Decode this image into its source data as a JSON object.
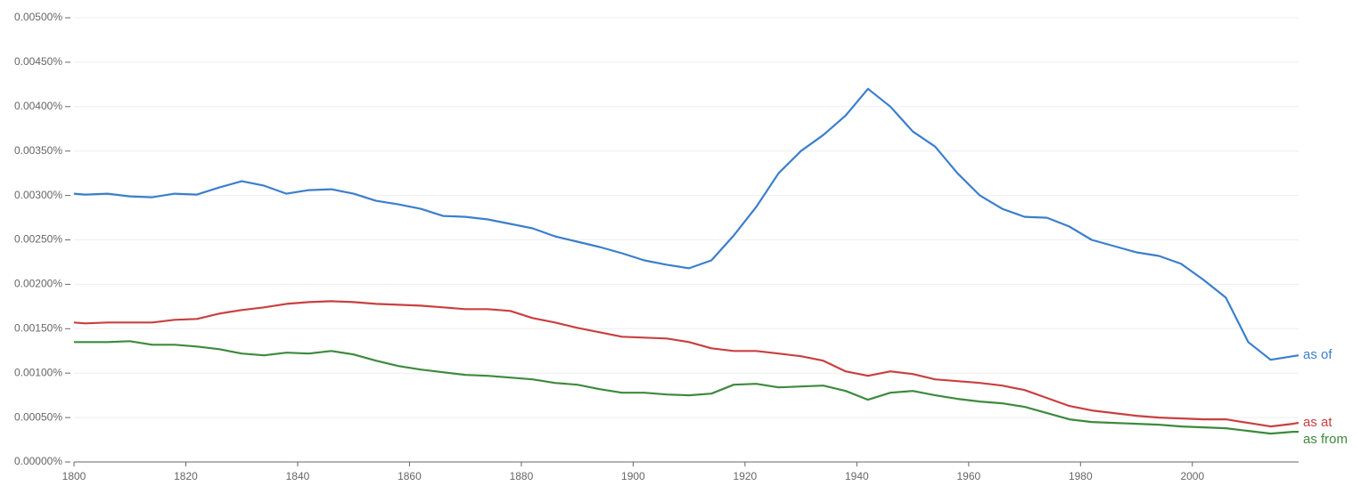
{
  "chart_data": {
    "type": "line",
    "x": [
      1800,
      1802,
      1806,
      1810,
      1814,
      1818,
      1822,
      1826,
      1830,
      1834,
      1838,
      1842,
      1846,
      1850,
      1854,
      1858,
      1862,
      1866,
      1870,
      1874,
      1878,
      1882,
      1886,
      1890,
      1894,
      1898,
      1902,
      1906,
      1910,
      1914,
      1918,
      1922,
      1926,
      1930,
      1934,
      1938,
      1942,
      1946,
      1950,
      1954,
      1958,
      1962,
      1966,
      1970,
      1974,
      1978,
      1982,
      1986,
      1990,
      1994,
      1998,
      2002,
      2006,
      2010,
      2014,
      2018,
      2019
    ],
    "series": [
      {
        "name": "as of",
        "color": "#3b7fcb",
        "values": [
          0.00302,
          0.00301,
          0.00302,
          0.00299,
          0.00298,
          0.00302,
          0.00301,
          0.00309,
          0.00316,
          0.00311,
          0.00302,
          0.00306,
          0.00307,
          0.00302,
          0.00294,
          0.0029,
          0.00285,
          0.00277,
          0.00276,
          0.00273,
          0.00268,
          0.00263,
          0.00254,
          0.00248,
          0.00242,
          0.00235,
          0.00227,
          0.00222,
          0.00218,
          0.00227,
          0.00255,
          0.00287,
          0.00325,
          0.0035,
          0.00368,
          0.0039,
          0.0042,
          0.004,
          0.00372,
          0.00355,
          0.00325,
          0.003,
          0.00285,
          0.00276,
          0.00275,
          0.00265,
          0.0025,
          0.00243,
          0.00236,
          0.00232,
          0.00223,
          0.00205,
          0.00185,
          0.00135,
          0.00115,
          0.00119,
          0.0012
        ]
      },
      {
        "name": "as at",
        "color": "#c94040",
        "values": [
          0.00157,
          0.00156,
          0.00157,
          0.00157,
          0.00157,
          0.0016,
          0.00161,
          0.00167,
          0.00171,
          0.00174,
          0.00178,
          0.0018,
          0.00181,
          0.0018,
          0.00178,
          0.00177,
          0.00176,
          0.00174,
          0.00172,
          0.00172,
          0.0017,
          0.00162,
          0.00157,
          0.00151,
          0.00146,
          0.00141,
          0.0014,
          0.00139,
          0.00135,
          0.00128,
          0.00125,
          0.00125,
          0.00122,
          0.00119,
          0.00114,
          0.00102,
          0.00097,
          0.00102,
          0.00099,
          0.00093,
          0.00091,
          0.00089,
          0.00086,
          0.00081,
          0.00072,
          0.00063,
          0.00058,
          0.00055,
          0.00052,
          0.0005,
          0.00049,
          0.00048,
          0.00048,
          0.00044,
          0.0004,
          0.00043,
          0.00044
        ]
      },
      {
        "name": "as from",
        "color": "#3d8a3d",
        "values": [
          0.00135,
          0.00135,
          0.00135,
          0.00136,
          0.00132,
          0.00132,
          0.0013,
          0.00127,
          0.00122,
          0.0012,
          0.00123,
          0.00122,
          0.00125,
          0.00121,
          0.00114,
          0.00108,
          0.00104,
          0.00101,
          0.00098,
          0.00097,
          0.00095,
          0.00093,
          0.00089,
          0.00087,
          0.00082,
          0.00078,
          0.00078,
          0.00076,
          0.00075,
          0.00077,
          0.00087,
          0.00088,
          0.00084,
          0.00085,
          0.00086,
          0.0008,
          0.0007,
          0.00078,
          0.0008,
          0.00075,
          0.00071,
          0.00068,
          0.00066,
          0.00062,
          0.00055,
          0.00048,
          0.00045,
          0.00044,
          0.00043,
          0.00042,
          0.0004,
          0.00039,
          0.00038,
          0.00035,
          0.00032,
          0.00034,
          0.00034
        ]
      }
    ],
    "xlim": [
      1800,
      2019
    ],
    "xticks": [
      1800,
      1820,
      1840,
      1860,
      1880,
      1900,
      1920,
      1940,
      1960,
      1980,
      2000
    ],
    "ylim": [
      0,
      0.005
    ],
    "yticks": [
      {
        "value": 0,
        "label": "0.00000%"
      },
      {
        "value": 0.0005,
        "label": "0.00050%"
      },
      {
        "value": 0.001,
        "label": "0.00100%"
      },
      {
        "value": 0.0015,
        "label": "0.00150%"
      },
      {
        "value": 0.002,
        "label": "0.00200%"
      },
      {
        "value": 0.0025,
        "label": "0.00250%"
      },
      {
        "value": 0.003,
        "label": "0.00300%"
      },
      {
        "value": 0.0035,
        "label": "0.00350%"
      },
      {
        "value": 0.004,
        "label": "0.00400%"
      },
      {
        "value": 0.0045,
        "label": "0.00450%"
      },
      {
        "value": 0.005,
        "label": "0.00500%"
      }
    ],
    "grid": true
  }
}
